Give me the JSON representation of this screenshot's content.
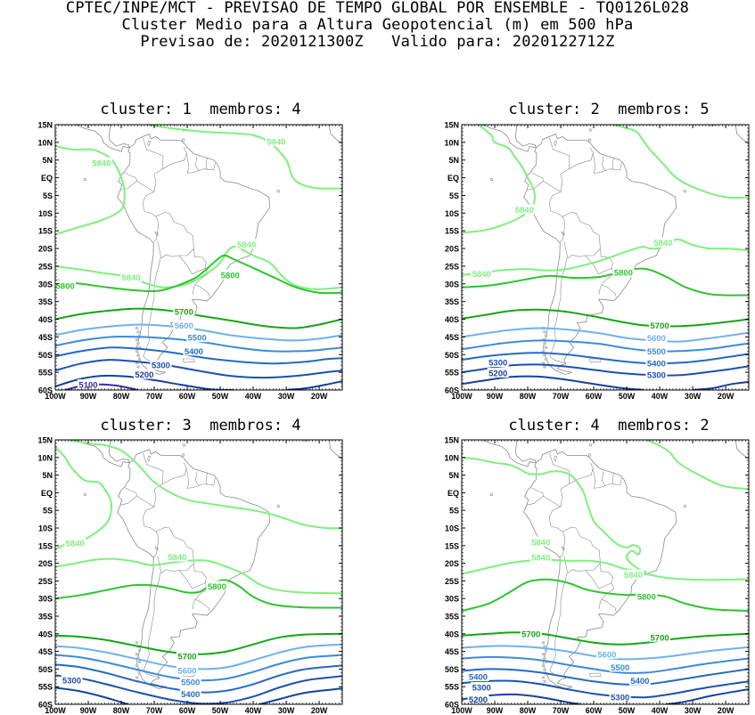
{
  "header": {
    "line1": "CPTEC/INPE/MCT - PREVISAO DE TEMPO GLOBAL POR ENSEMBLE - TQ0126L028",
    "line2": "Cluster Medio para a Altura Geopotencial (m) em 500 hPa",
    "line3": "Previsao de: 2020121300Z   Valido para: 2020122712Z"
  },
  "axes": {
    "lat_labels": [
      "15N",
      "10N",
      "5N",
      "EQ",
      "5S",
      "10S",
      "15S",
      "20S",
      "25S",
      "30S",
      "35S",
      "40S",
      "45S",
      "50S",
      "55S",
      "60S"
    ],
    "lon_labels": [
      "100W",
      "90W",
      "80W",
      "70W",
      "60W",
      "50W",
      "40W",
      "30W",
      "20W"
    ]
  },
  "colors": {
    "c5840": "#7fef7f",
    "c5800": "#2ec42e",
    "c5700": "#14a514",
    "c5600": "#6fb0f0",
    "c5500": "#3a8ae0",
    "c5400": "#2468c8",
    "c5300": "#1a4fb4",
    "c5200": "#16409c",
    "c5100": "#3a2ab0",
    "land": "#8a8a8a",
    "ice": "#c0c0c0"
  },
  "panels": [
    {
      "title": "cluster: 1  membros: 4",
      "labels": [
        {
          "level": "5840",
          "text": "5840"
        },
        {
          "level": "5840",
          "text": "5840"
        },
        {
          "level": "5840",
          "text": "5840"
        },
        {
          "level": "5840",
          "text": "5840"
        },
        {
          "level": "5800",
          "text": "5800"
        },
        {
          "level": "5800",
          "text": "5800"
        },
        {
          "level": "5700",
          "text": "5700"
        },
        {
          "level": "5600",
          "text": "5600"
        },
        {
          "level": "5500",
          "text": "5500"
        },
        {
          "level": "5400",
          "text": "5400"
        },
        {
          "level": "5300",
          "text": "5300"
        },
        {
          "level": "5200",
          "text": "5200"
        },
        {
          "level": "5100",
          "text": "5100"
        }
      ]
    },
    {
      "title": "cluster: 2  membros: 5",
      "labels": [
        {
          "level": "5840",
          "text": "5840"
        },
        {
          "level": "5840",
          "text": "5840"
        },
        {
          "level": "5840",
          "text": "5840"
        },
        {
          "level": "5800",
          "text": "5800"
        },
        {
          "level": "5700",
          "text": "5700"
        },
        {
          "level": "5600",
          "text": "5600"
        },
        {
          "level": "5500",
          "text": "5500"
        },
        {
          "level": "5400",
          "text": "5400"
        },
        {
          "level": "5300",
          "text": "5300"
        },
        {
          "level": "5300",
          "text": "5300"
        },
        {
          "level": "5200",
          "text": "5200"
        }
      ]
    },
    {
      "title": "cluster: 3  membros: 4",
      "labels": [
        {
          "level": "5840",
          "text": "5840"
        },
        {
          "level": "5840",
          "text": "5840"
        },
        {
          "level": "5800",
          "text": "5800"
        },
        {
          "level": "5700",
          "text": "5700"
        },
        {
          "level": "5600",
          "text": "5600"
        },
        {
          "level": "5500",
          "text": "5500"
        },
        {
          "level": "5400",
          "text": "5400"
        },
        {
          "level": "5300",
          "text": "5300"
        }
      ]
    },
    {
      "title": "cluster: 4  membros: 2",
      "labels": [
        {
          "level": "5840",
          "text": "5840"
        },
        {
          "level": "5840",
          "text": "5840"
        },
        {
          "level": "5840",
          "text": "5840"
        },
        {
          "level": "5800",
          "text": "5800"
        },
        {
          "level": "5700",
          "text": "5700"
        },
        {
          "level": "5700",
          "text": "5700"
        },
        {
          "level": "5600",
          "text": "5600"
        },
        {
          "level": "5500",
          "text": "5500"
        },
        {
          "level": "5400",
          "text": "5400"
        },
        {
          "level": "5400",
          "text": "5400"
        },
        {
          "level": "5300",
          "text": "5300"
        },
        {
          "level": "5300",
          "text": "5300"
        },
        {
          "level": "5200",
          "text": "5200"
        }
      ]
    }
  ]
}
